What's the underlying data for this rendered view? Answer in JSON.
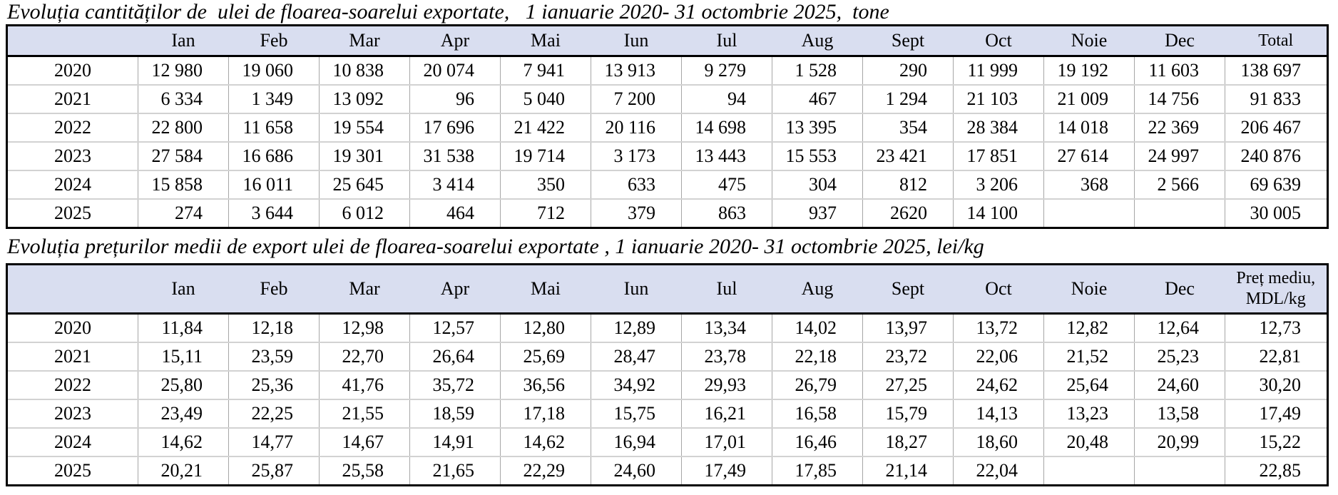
{
  "tables": [
    {
      "title": "Evoluția cantităților de  ulei de floarea-soarelui exportate,   1 ianuarie 2020- 31 octombrie 2025,  tone",
      "unit": "tone",
      "month_headers": [
        "Ian",
        "Feb",
        "Mar",
        "Apr",
        "Mai",
        "Iun",
        "Iul",
        "Aug",
        "Sept",
        "Oct",
        "Noie",
        "Dec"
      ],
      "last_header": "Total",
      "rows": [
        {
          "year": "2020",
          "values": [
            "12 980",
            "19 060",
            "10 838",
            "20 074",
            "7 941",
            "13 913",
            "9 279",
            "1 528",
            "290",
            "11 999",
            "19 192",
            "11 603"
          ],
          "last": "138 697"
        },
        {
          "year": "2021",
          "values": [
            "6 334",
            "1 349",
            "13 092",
            "96",
            "5 040",
            "7 200",
            "94",
            "467",
            "1 294",
            "21 103",
            "21 009",
            "14 756"
          ],
          "last": "91 833"
        },
        {
          "year": "2022",
          "values": [
            "22 800",
            "11 658",
            "19 554",
            "17 696",
            "21 422",
            "20 116",
            "14 698",
            "13 395",
            "354",
            "28 384",
            "14 018",
            "22 369"
          ],
          "last": "206 467"
        },
        {
          "year": "2023",
          "values": [
            "27 584",
            "16 686",
            "19 301",
            "31 538",
            "19 714",
            "3 173",
            "13 443",
            "15 553",
            "23 421",
            "17 851",
            "27 614",
            "24 997"
          ],
          "last": "240 876"
        },
        {
          "year": "2024",
          "values": [
            "15 858",
            "16 011",
            "25 645",
            "3 414",
            "350",
            "633",
            "475",
            "304",
            "812",
            "3 206",
            "368",
            "2 566"
          ],
          "last": "69 639"
        },
        {
          "year": "2025",
          "values": [
            "274",
            "3 644",
            "6 012",
            "464",
            "712",
            "379",
            "863",
            "937",
            "2620",
            "14 100",
            "",
            ""
          ],
          "last": "30 005"
        }
      ]
    },
    {
      "title": "Evoluția prețurilor medii de export ulei de floarea-soarelui exportate , 1 ianuarie 2020- 31 octombrie 2025, lei/kg",
      "unit": "lei/kg",
      "month_headers": [
        "Ian",
        "Feb",
        "Mar",
        "Apr",
        "Mai",
        "Iun",
        "Iul",
        "Aug",
        "Sept",
        "Oct",
        "Noie",
        "Dec"
      ],
      "last_header": "Preț mediu,\nMDL/kg",
      "rows": [
        {
          "year": "2020",
          "values": [
            "11,84",
            "12,18",
            "12,98",
            "12,57",
            "12,80",
            "12,89",
            "13,34",
            "14,02",
            "13,97",
            "13,72",
            "12,82",
            "12,64"
          ],
          "last": "12,73"
        },
        {
          "year": "2021",
          "values": [
            "15,11",
            "23,59",
            "22,70",
            "26,64",
            "25,69",
            "28,47",
            "23,78",
            "22,18",
            "23,72",
            "22,06",
            "21,52",
            "25,23"
          ],
          "last": "22,81"
        },
        {
          "year": "2022",
          "values": [
            "25,80",
            "25,36",
            "41,76",
            "35,72",
            "36,56",
            "34,92",
            "29,93",
            "26,79",
            "27,25",
            "24,62",
            "25,64",
            "24,60"
          ],
          "last": "30,20"
        },
        {
          "year": "2023",
          "values": [
            "23,49",
            "22,25",
            "21,55",
            "18,59",
            "17,18",
            "15,75",
            "16,21",
            "16,58",
            "15,79",
            "14,13",
            "13,23",
            "13,58"
          ],
          "last": "17,49"
        },
        {
          "year": "2024",
          "values": [
            "14,62",
            "14,77",
            "14,67",
            "14,91",
            "14,62",
            "16,94",
            "17,01",
            "16,46",
            "18,27",
            "18,60",
            "20,48",
            "20,99"
          ],
          "last": "15,22"
        },
        {
          "year": "2025",
          "values": [
            "20,21",
            "25,87",
            "25,58",
            "21,65",
            "22,29",
            "24,60",
            "17,49",
            "17,85",
            "21,14",
            "22,04",
            "",
            ""
          ],
          "last": "22,85"
        }
      ]
    }
  ]
}
